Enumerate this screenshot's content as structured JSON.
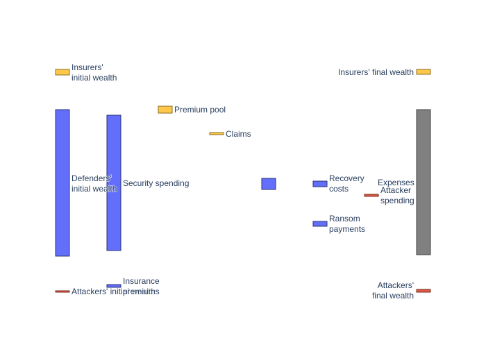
{
  "nodes": [
    {
      "id": "insurers_initial",
      "label": [
        "Insurers'",
        "initial wealth"
      ],
      "color": "#FFC84A",
      "stroke": "#8a6d1e"
    },
    {
      "id": "defenders_initial",
      "label": [
        "Defenders'",
        "initial wealth"
      ],
      "color": "#636EFA",
      "stroke": "#2a3276"
    },
    {
      "id": "attackers_initial",
      "label": [
        "Attackers' initial wealth"
      ],
      "color": "#E05A44",
      "stroke": "#7a2a1e"
    },
    {
      "id": "security",
      "label": [
        "Security spending"
      ],
      "color": "#636EFA",
      "stroke": "#2a3276"
    },
    {
      "id": "insurance",
      "label": [
        "Insurance",
        "premiums"
      ],
      "color": "#636EFA",
      "stroke": "#2a3276"
    },
    {
      "id": "premium_pool",
      "label": [
        "Premium pool"
      ],
      "color": "#FFC84A",
      "stroke": "#8a6d1e"
    },
    {
      "id": "claims",
      "label": [
        "Claims"
      ],
      "color": "#FFC84A",
      "stroke": "#8a6d1e"
    },
    {
      "id": "loss",
      "label": [],
      "color": "#636EFA",
      "stroke": "#2a3276"
    },
    {
      "id": "recovery",
      "label": [
        "Recovery",
        "costs"
      ],
      "color": "#636EFA",
      "stroke": "#2a3276"
    },
    {
      "id": "ransom",
      "label": [
        "Ransom",
        "payments"
      ],
      "color": "#636EFA",
      "stroke": "#2a3276"
    },
    {
      "id": "attacker_spending",
      "label": [
        "Attacker",
        "spending"
      ],
      "color": "#E05A44",
      "stroke": "#7a2a1e"
    },
    {
      "id": "insurers_final",
      "label": [
        "Insurers' final wealth"
      ],
      "color": "#FFC84A",
      "stroke": "#8a6d1e"
    },
    {
      "id": "expenses",
      "label": [
        "Expenses"
      ],
      "color": "#808080",
      "stroke": "#404040"
    },
    {
      "id": "attackers_final",
      "label": [
        "Attackers'",
        "final wealth"
      ],
      "color": "#E05A44",
      "stroke": "#7a2a1e"
    }
  ],
  "links": [
    {
      "source": "insurers_initial",
      "target": "premium_pool",
      "color": "#FFC84A"
    },
    {
      "source": "defenders_initial",
      "target": "security",
      "color": "#636EFA"
    },
    {
      "source": "defenders_initial",
      "target": "insurance",
      "color": "#636EFA"
    },
    {
      "source": "defenders_initial",
      "target": "loss",
      "color": "#636EFA"
    },
    {
      "source": "insurance",
      "target": "premium_pool",
      "color": "#FFC84A"
    },
    {
      "source": "premium_pool",
      "target": "insurers_final",
      "color": "#FFC84A"
    },
    {
      "source": "premium_pool",
      "target": "claims",
      "color": "#FFC84A"
    },
    {
      "source": "claims",
      "target": "loss",
      "color": "#636EFA"
    },
    {
      "source": "security",
      "target": "expenses",
      "color": "#808080"
    },
    {
      "source": "loss",
      "target": "recovery",
      "color": "#636EFA"
    },
    {
      "source": "loss",
      "target": "ransom",
      "color": "#636EFA"
    },
    {
      "source": "recovery",
      "target": "expenses",
      "color": "#808080"
    },
    {
      "source": "ransom",
      "target": "attacker_spending",
      "color": "#E05A44"
    },
    {
      "source": "ransom",
      "target": "attackers_final",
      "color": "#E05A44"
    },
    {
      "source": "attacker_spending",
      "target": "expenses",
      "color": "#808080"
    },
    {
      "source": "attackers_initial",
      "target": "attackers_final",
      "color": "#E05A44"
    }
  ]
}
